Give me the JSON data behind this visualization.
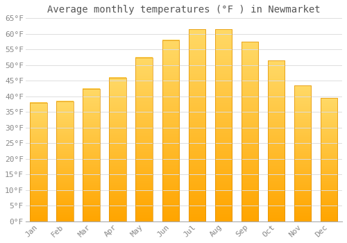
{
  "title": "Average monthly temperatures (°F ) in Newmarket",
  "months": [
    "Jan",
    "Feb",
    "Mar",
    "Apr",
    "May",
    "Jun",
    "Jul",
    "Aug",
    "Sep",
    "Oct",
    "Nov",
    "Dec"
  ],
  "values": [
    38,
    38.5,
    42.5,
    46,
    52.5,
    58,
    61.5,
    61.5,
    57.5,
    51.5,
    43.5,
    39.5
  ],
  "bar_color_top": "#FFD966",
  "bar_color_bottom": "#FFA500",
  "bar_color_edge": "#E09000",
  "ylim": [
    0,
    65
  ],
  "yticks": [
    0,
    5,
    10,
    15,
    20,
    25,
    30,
    35,
    40,
    45,
    50,
    55,
    60,
    65
  ],
  "ytick_labels": [
    "0°F",
    "5°F",
    "10°F",
    "15°F",
    "20°F",
    "25°F",
    "30°F",
    "35°F",
    "40°F",
    "45°F",
    "50°F",
    "55°F",
    "60°F",
    "65°F"
  ],
  "background_color": "#FFFFFF",
  "grid_color": "#DDDDDD",
  "title_fontsize": 10,
  "tick_fontsize": 8,
  "tick_color": "#888888",
  "font_family": "monospace"
}
